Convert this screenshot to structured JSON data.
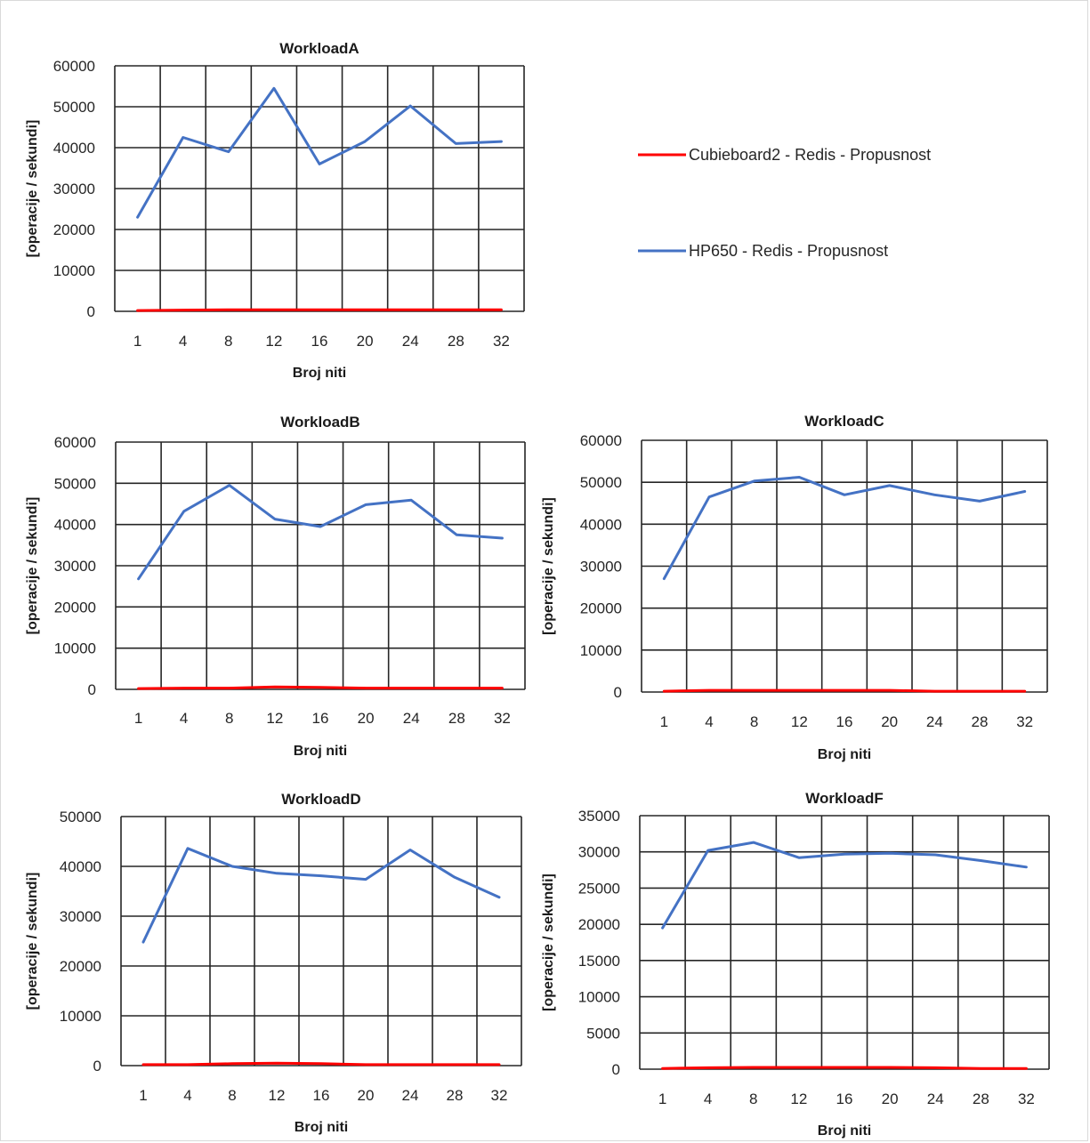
{
  "legend": {
    "items": [
      {
        "label": "Cubieboard2 - Redis - Propusnost",
        "color": "#ff0000"
      },
      {
        "label": "HP650 - Redis - Propusnost",
        "color": "#4472c4"
      }
    ]
  },
  "chart_data": [
    {
      "type": "line",
      "title": "WorkloadA",
      "xlabel": "Broj niti",
      "ylabel": "[operacije / sekundi]",
      "categories": [
        "1",
        "4",
        "8",
        "12",
        "16",
        "20",
        "24",
        "28",
        "32"
      ],
      "ylim": [
        0,
        60000
      ],
      "yticks": [
        0,
        10000,
        20000,
        30000,
        40000,
        50000,
        60000
      ],
      "grid": true,
      "series": [
        {
          "name": "Cubieboard2 - Redis - Propusnost",
          "color": "#ff0000",
          "values": [
            200,
            300,
            400,
            400,
            400,
            400,
            400,
            400,
            400
          ]
        },
        {
          "name": "HP650 - Redis - Propusnost",
          "color": "#4472c4",
          "values": [
            23000,
            42500,
            39000,
            54500,
            36000,
            41500,
            50200,
            41000,
            41500
          ]
        }
      ]
    },
    {
      "type": "line",
      "title": "WorkloadB",
      "xlabel": "Broj niti",
      "ylabel": "[operacije / sekundi]",
      "categories": [
        "1",
        "4",
        "8",
        "12",
        "16",
        "20",
        "24",
        "28",
        "32"
      ],
      "ylim": [
        0,
        60000
      ],
      "yticks": [
        0,
        10000,
        20000,
        30000,
        40000,
        50000,
        60000
      ],
      "grid": true,
      "series": [
        {
          "name": "Cubieboard2 - Redis - Propusnost",
          "color": "#ff0000",
          "values": [
            200,
            300,
            300,
            600,
            500,
            300,
            300,
            300,
            300
          ]
        },
        {
          "name": "HP650 - Redis - Propusnost",
          "color": "#4472c4",
          "values": [
            26800,
            43200,
            49500,
            41300,
            39500,
            44800,
            45900,
            37500,
            36700
          ]
        }
      ]
    },
    {
      "type": "line",
      "title": "WorkloadC",
      "xlabel": "Broj niti",
      "ylabel": "[operacije / sekundi]",
      "categories": [
        "1",
        "4",
        "8",
        "12",
        "16",
        "20",
        "24",
        "28",
        "32"
      ],
      "ylim": [
        0,
        60000
      ],
      "yticks": [
        0,
        10000,
        20000,
        30000,
        40000,
        50000,
        60000
      ],
      "grid": true,
      "series": [
        {
          "name": "Cubieboard2 - Redis - Propusnost",
          "color": "#ff0000",
          "values": [
            200,
            400,
            400,
            400,
            400,
            400,
            200,
            200,
            200
          ]
        },
        {
          "name": "HP650 - Redis - Propusnost",
          "color": "#4472c4",
          "values": [
            27000,
            46500,
            50300,
            51200,
            47000,
            49200,
            47000,
            45500,
            47800
          ]
        }
      ]
    },
    {
      "type": "line",
      "title": "WorkloadD",
      "xlabel": "Broj niti",
      "ylabel": "[operacije / sekundi]",
      "categories": [
        "1",
        "4",
        "8",
        "12",
        "16",
        "20",
        "24",
        "28",
        "32"
      ],
      "ylim": [
        0,
        50000
      ],
      "yticks": [
        0,
        10000,
        20000,
        30000,
        40000,
        50000
      ],
      "grid": true,
      "series": [
        {
          "name": "Cubieboard2 - Redis - Propusnost",
          "color": "#ff0000",
          "values": [
            200,
            200,
            400,
            500,
            400,
            200,
            200,
            200,
            200
          ]
        },
        {
          "name": "HP650 - Redis - Propusnost",
          "color": "#4472c4",
          "values": [
            24800,
            43600,
            40000,
            38600,
            38100,
            37400,
            43300,
            37800,
            33800
          ]
        }
      ]
    },
    {
      "type": "line",
      "title": "WorkloadF",
      "xlabel": "Broj niti",
      "ylabel": "[operacije / sekundi]",
      "categories": [
        "1",
        "4",
        "8",
        "12",
        "16",
        "20",
        "24",
        "28",
        "32"
      ],
      "ylim": [
        0,
        35000
      ],
      "yticks": [
        0,
        5000,
        10000,
        15000,
        20000,
        25000,
        30000,
        35000
      ],
      "grid": true,
      "series": [
        {
          "name": "Cubieboard2 - Redis - Propusnost",
          "color": "#ff0000",
          "values": [
            100,
            200,
            250,
            250,
            250,
            250,
            200,
            100,
            100
          ]
        },
        {
          "name": "HP650 - Redis - Propusnost",
          "color": "#4472c4",
          "values": [
            19500,
            30200,
            31300,
            29200,
            29700,
            29800,
            29600,
            28800,
            27900
          ]
        }
      ]
    }
  ]
}
